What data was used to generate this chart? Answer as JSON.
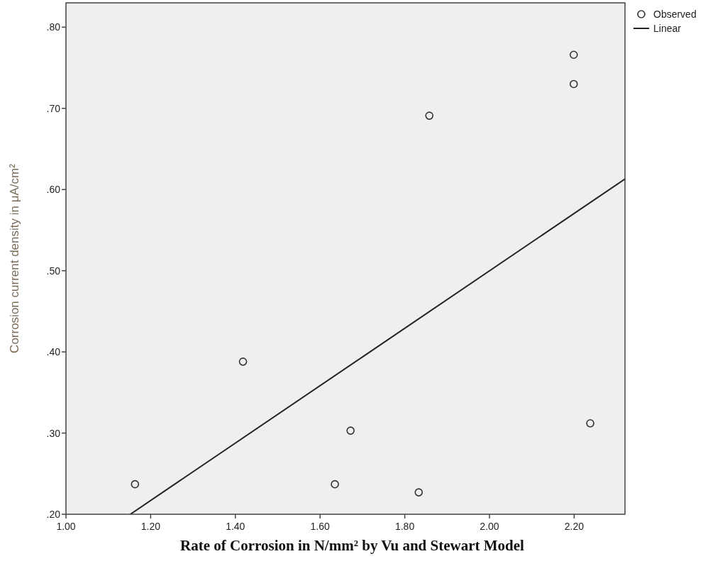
{
  "chart_data": {
    "type": "scatter",
    "xlabel": "Rate of Corrosion in N/mm² by Vu and Stewart Model",
    "ylabel": "Corrosion current density in μA/cm²",
    "xlim": [
      1.0,
      2.32
    ],
    "xticks": [
      {
        "value": 1.0,
        "label": "1.00"
      },
      {
        "value": 1.2,
        "label": "1.20"
      },
      {
        "value": 1.4,
        "label": "1.40"
      },
      {
        "value": 1.6,
        "label": "1.60"
      },
      {
        "value": 1.8,
        "label": "1.80"
      },
      {
        "value": 2.0,
        "label": "2.00"
      },
      {
        "value": 2.2,
        "label": "2.20"
      }
    ],
    "ylim": [
      0.2,
      0.83
    ],
    "yticks": [
      {
        "value": 0.2,
        "label": ".20"
      },
      {
        "value": 0.3,
        "label": ".30"
      },
      {
        "value": 0.4,
        "label": ".40"
      },
      {
        "value": 0.5,
        "label": ".50"
      },
      {
        "value": 0.6,
        "label": ".60"
      },
      {
        "value": 0.7,
        "label": ".70"
      },
      {
        "value": 0.8,
        "label": ".80"
      }
    ],
    "legend": "top right",
    "grid": false,
    "series": [
      {
        "name": "Observed",
        "marker": "circle",
        "color": "#333333",
        "x": [
          1.163,
          1.418,
          1.635,
          1.672,
          1.833,
          1.858,
          2.199,
          2.199,
          2.238
        ],
        "values": [
          0.237,
          0.388,
          0.237,
          0.303,
          0.227,
          0.691,
          0.766,
          0.73,
          0.312
        ]
      },
      {
        "name": "Linear",
        "type": "line",
        "line_style": "solid",
        "color": "#222222",
        "x": [
          1.152,
          2.32
        ],
        "values": [
          0.2,
          0.613
        ]
      }
    ]
  }
}
